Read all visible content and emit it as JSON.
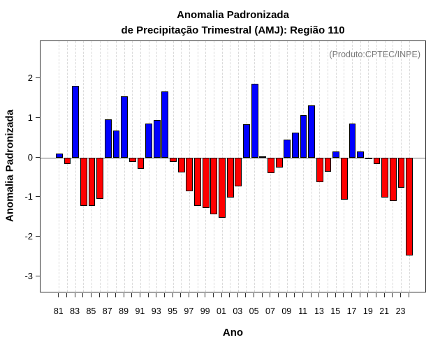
{
  "title": {
    "line1": "Anomalia Padronizada",
    "line2": "de Precipitação Trimestral (AMJ): Região 110"
  },
  "chart_data": {
    "type": "bar",
    "title": "Anomalia Padronizada de Precipitação Trimestral (AMJ): Região 110",
    "xlabel": "Ano",
    "ylabel": "Anomalia Padronizada",
    "annotation": "(Produto:CPTEC/INPE)",
    "x": [
      1981,
      1982,
      1983,
      1984,
      1985,
      1986,
      1987,
      1988,
      1989,
      1990,
      1991,
      1992,
      1993,
      1994,
      1995,
      1996,
      1997,
      1998,
      1999,
      2000,
      2001,
      2002,
      2003,
      2004,
      2005,
      2006,
      2007,
      2008,
      2009,
      2010,
      2011,
      2012,
      2013,
      2014,
      2015,
      2016,
      2017,
      2018,
      2019,
      2020,
      2021,
      2022,
      2023,
      2024
    ],
    "values": [
      0.1,
      -0.16,
      1.82,
      -1.22,
      -1.22,
      -1.04,
      0.97,
      0.68,
      1.55,
      -0.1,
      -0.29,
      0.86,
      0.95,
      1.68,
      -0.11,
      -0.37,
      -0.85,
      -1.22,
      -1.27,
      -1.43,
      -1.52,
      -1.0,
      -0.73,
      0.84,
      1.87,
      0.04,
      -0.38,
      -0.25,
      0.45,
      0.63,
      1.08,
      1.32,
      -0.62,
      -0.35,
      0.15,
      -1.06,
      0.86,
      0.16,
      -0.04,
      -0.16,
      -1.0,
      -1.1,
      -0.75,
      -2.47
    ],
    "xtick_labels": [
      "81",
      "83",
      "85",
      "87",
      "89",
      "91",
      "93",
      "95",
      "97",
      "99",
      "01",
      "03",
      "05",
      "07",
      "09",
      "11",
      "13",
      "15",
      "17",
      "19",
      "21",
      "23"
    ],
    "yticks": [
      2,
      1,
      0,
      -1,
      -2,
      -3
    ],
    "ylim": [
      -3.42,
      2.95
    ],
    "grid": "vertical-dashed",
    "legend": "none",
    "positive_color": "#0000ff",
    "negative_color": "#ff0000",
    "bar_border_color": "#000000",
    "annotation_color": "#7a7a7a",
    "axis_color": "#2e2e2e"
  }
}
